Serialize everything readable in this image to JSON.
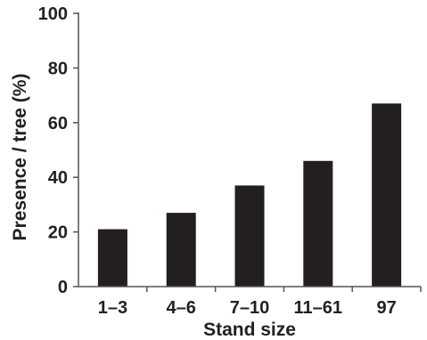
{
  "chart_data": {
    "type": "bar",
    "categories": [
      "1–3",
      "4–6",
      "7–10",
      "11–61",
      "97"
    ],
    "values": [
      21,
      27,
      37,
      46,
      67
    ],
    "xlabel": "Stand size",
    "ylabel": "Presence / tree (%)",
    "ylim": [
      0,
      100
    ],
    "yticks": [
      0,
      20,
      40,
      60,
      80,
      100
    ],
    "grid": false,
    "bar_color": "#231f20"
  }
}
